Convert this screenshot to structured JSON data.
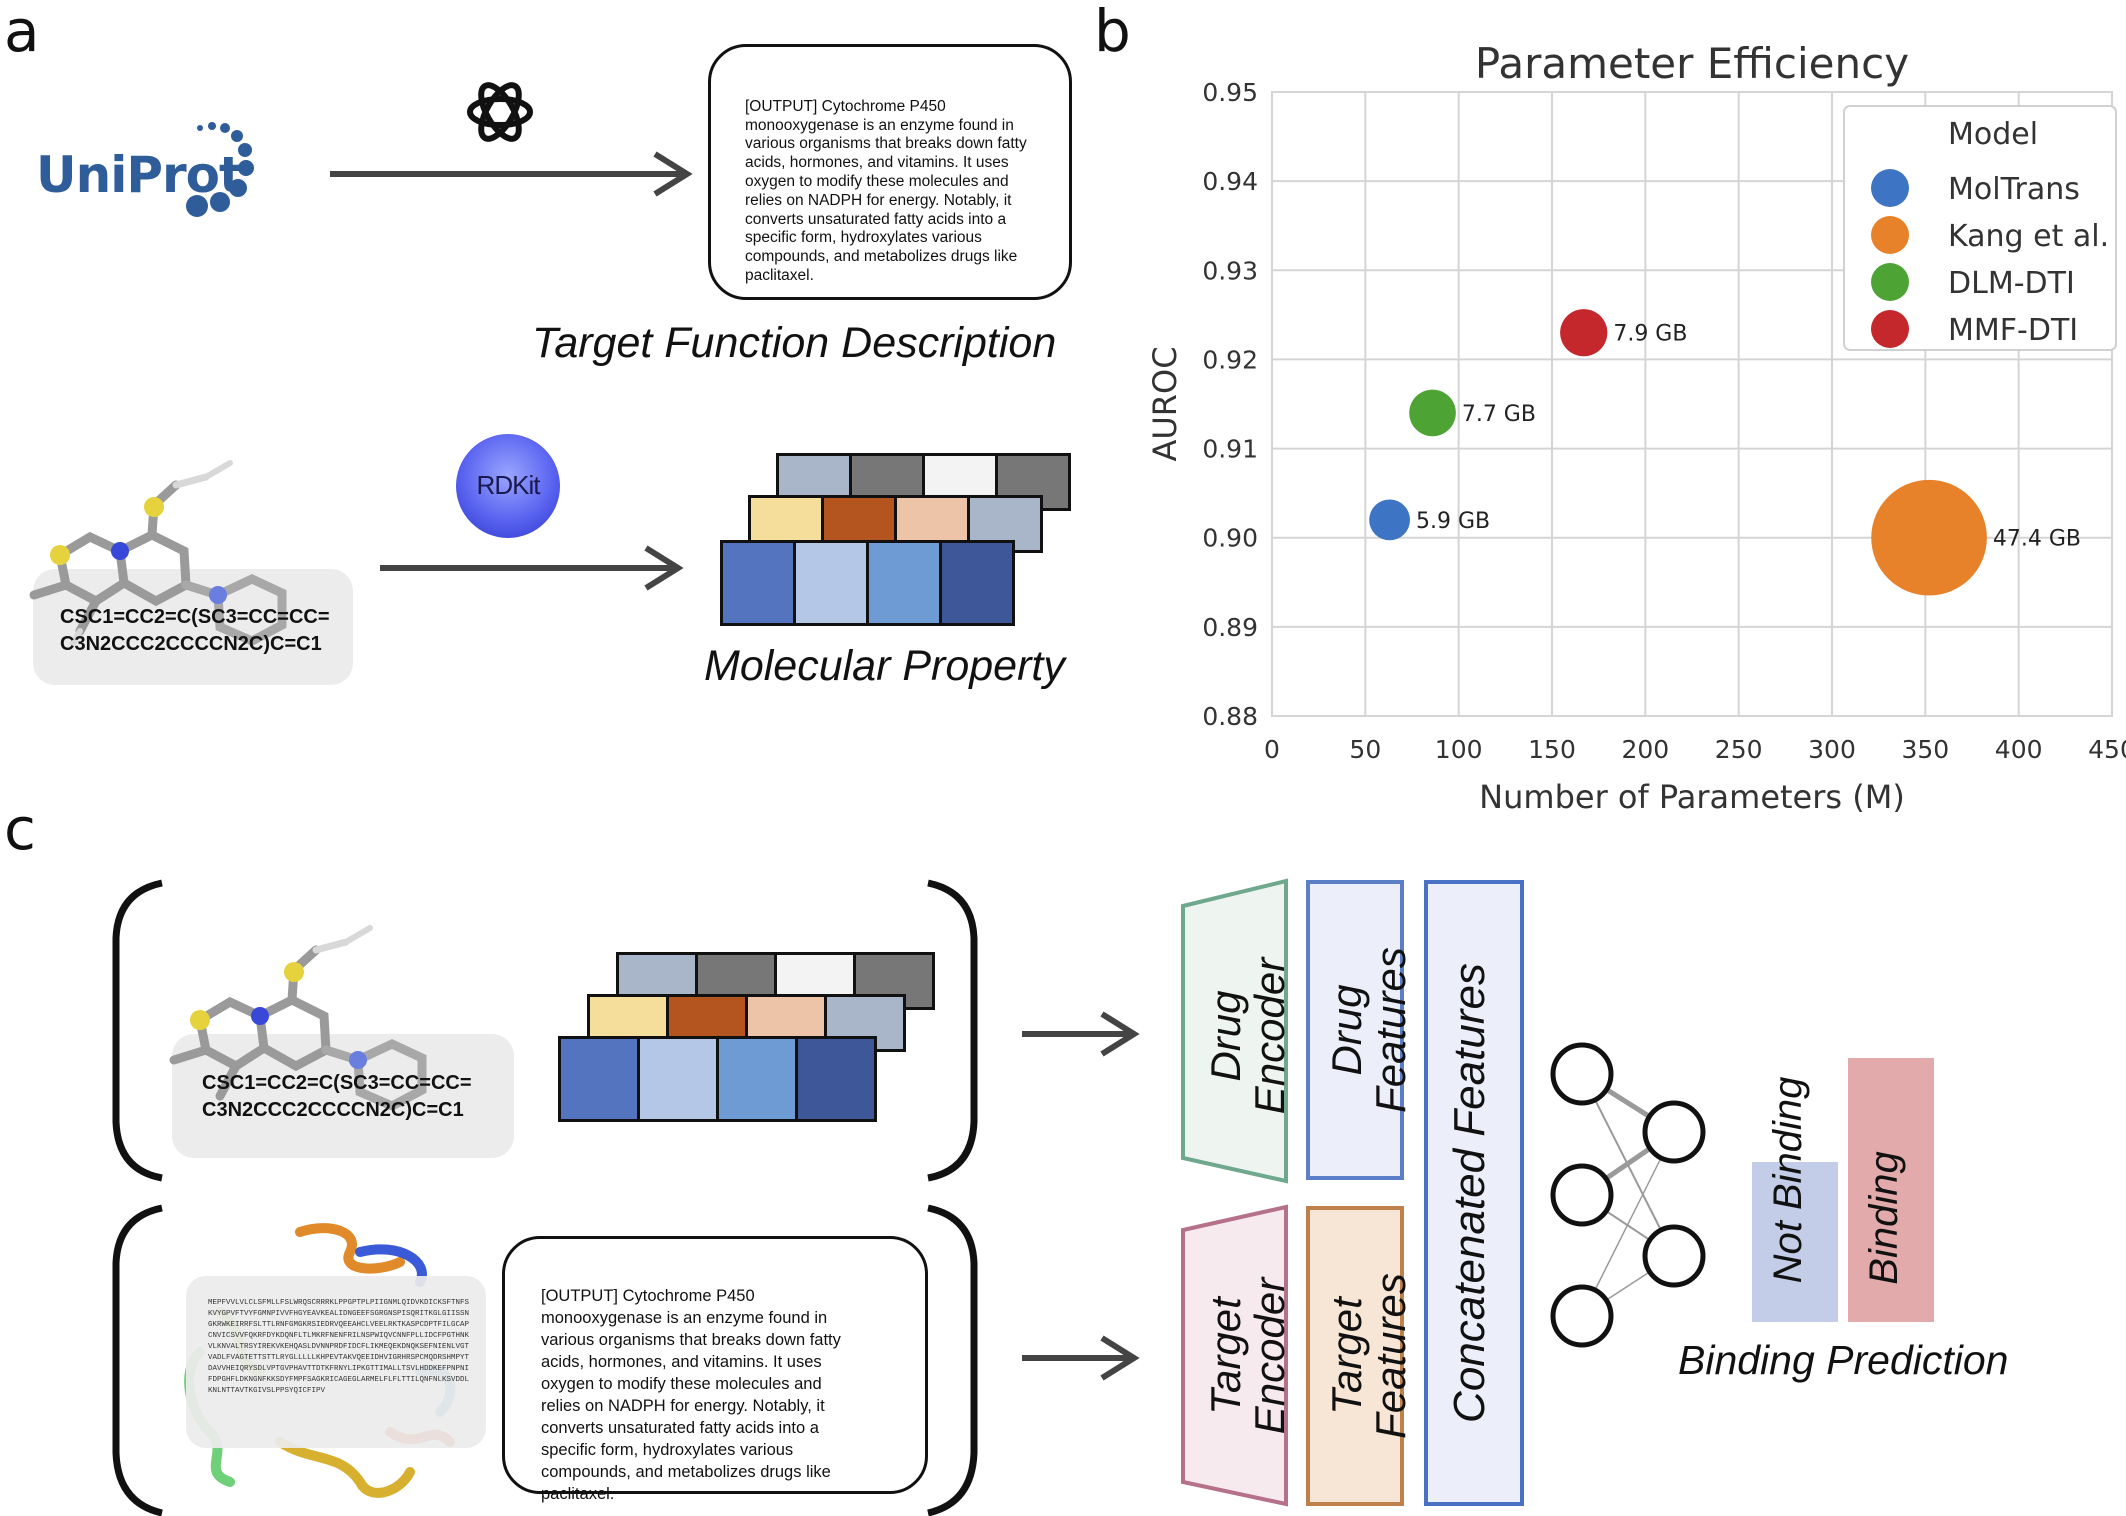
{
  "panel_labels": {
    "a": "a",
    "b": "b",
    "c": "c"
  },
  "uniprot_logo": "UniProt",
  "rdkit_logo": "RDKit",
  "openai_logo_icon": "openai-logo-icon",
  "description_text": "[OUTPUT] Cytochrome P450\nmonooxygenase is an enzyme found in\nvarious organisms that breaks down fatty\nacids, hormones, and vitamins. It uses\noxygen to modify these molecules and\nrelies on NADPH for energy. Notably, it\nconverts unsaturated fatty acids into a\nspecific form, hydroxylates various\ncompounds, and metabolizes drugs like\npaclitaxel.",
  "target_function_caption": "Target Function Description",
  "molecular_property_caption": "Molecular Property",
  "smiles_text": "CSC1=CC2=C(SC3=CC=CC=\nC3N2CCC2CCCCN2C)C=C1",
  "protein_sequence": "MEPFVVLVLCLSFMLLFSLWRQSCRRRKLPPGPTPLPIIGNMLQIDVKDICKSFTNFSKVYGPVFTVYFGMNPIVVFHGYEAVKEALIDNGEEFSGRGNSPISQRITKGLGIISSNGKRWKEIRRFSLTTLRNFGMGKRSIEDRVQEEAHCLVEELRKTKASPCDPTFILGCAPCNVICSVVFQKRFDYKDQNFLTLMKRFNENFRILNSPWIQVCNNFPLLIDCFPGTHNKVLKNVALTRSYIREKVKEHQASLDVNNPRDFIDCFLIKMEQEKDNQKSEFNIENLVGTVADLFVAGTETTSTTLRYGLLLLLKHPEVTAKVQEEIDHVIGRHRSPCMQDRSHMPYTDAVVHEIQRYSDLVPTGVPHAVTTDTKFRNYLIPKGTTIMALLTSVLHDDKEFPNPNIFDPGHFLDKNGNFKKSDYFMPFSAGKRICAGEGLARMELFLFLTTILQNFNLKSVDDLKNLNTTAVTKGIVSLPPSYQICFIPV",
  "colors": {
    "moltrans": "#3d75c4",
    "kang": "#e8822a",
    "dlm_dti": "#4ea335",
    "mmf_dti": "#c4282d",
    "drug_encoder": "#6fa88c",
    "drug_features": "#5b7fc7",
    "concat": "#4a72c4",
    "target_encoder": "#b5708a",
    "target_features": "#c0804a",
    "not_binding_bar": "#c3cde8",
    "binding_bar": "#e2aaaa",
    "feature_grid": {
      "back": [
        "#a9b6c9",
        "#777777",
        "#f3f3f3",
        "#777777"
      ],
      "middle": [
        "#f5dd9b",
        "#b4541e",
        "#eec4a8",
        "#a9b6c9"
      ],
      "front": [
        "#5474c0",
        "#b5c7e6",
        "#6e9bd4",
        "#3d5799"
      ]
    }
  },
  "chart_data": {
    "type": "scatter",
    "title": "Parameter Efficiency",
    "xlabel": "Number of Parameters (M)",
    "ylabel": "AUROC",
    "xlim": [
      0,
      450
    ],
    "ylim": [
      0.88,
      0.95
    ],
    "xticks": [
      0,
      50,
      100,
      150,
      200,
      250,
      300,
      350,
      400,
      450
    ],
    "yticks": [
      "0.88",
      "0.89",
      "0.90",
      "0.91",
      "0.92",
      "0.93",
      "0.94",
      "0.95"
    ],
    "grid": true,
    "legend": {
      "title": "Model",
      "placement": "top-right"
    },
    "series": [
      {
        "name": "MolTrans",
        "x": 63,
        "y": 0.902,
        "memory_gb": 5.9,
        "label": "5.9 GB",
        "color": "#3d75c4"
      },
      {
        "name": "Kang et al.",
        "x": 352,
        "y": 0.9,
        "memory_gb": 47.4,
        "label": "47.4 GB",
        "color": "#e8822a"
      },
      {
        "name": "DLM-DTI",
        "x": 86,
        "y": 0.914,
        "memory_gb": 7.7,
        "label": "7.7 GB",
        "color": "#4ea335"
      },
      {
        "name": "MMF-DTI",
        "x": 167,
        "y": 0.923,
        "memory_gb": 7.9,
        "label": "7.9 GB",
        "color": "#c4282d"
      }
    ]
  },
  "pipeline": {
    "drug_encoder": "Drug\nEncoder",
    "drug_features": "Drug\nFeatures",
    "target_encoder": "Target\nEncoder",
    "target_features": "Target\nFeatures",
    "concatenated_features": "Concatenated Features",
    "not_binding": "Not Binding",
    "binding": "Binding",
    "binding_prediction": "Binding Prediction"
  }
}
